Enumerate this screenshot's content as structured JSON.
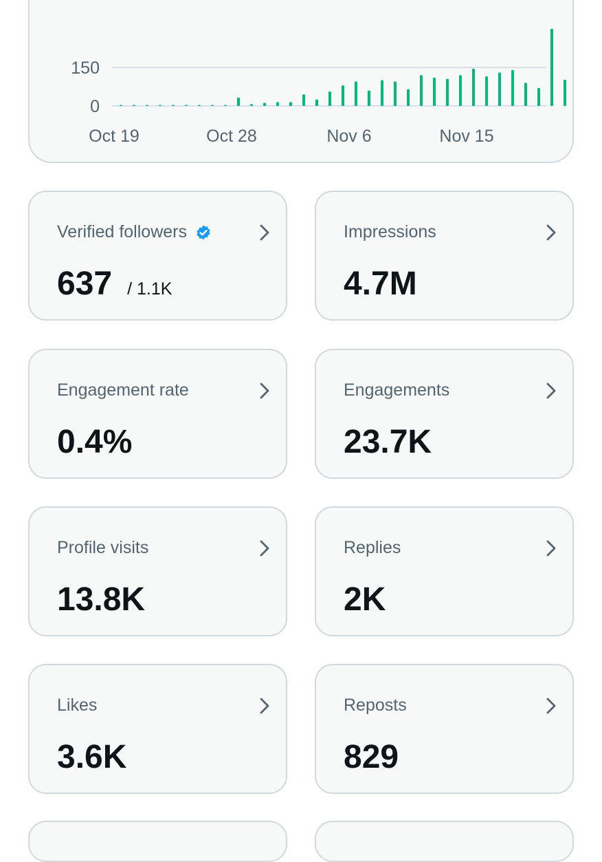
{
  "chart_data": {
    "type": "bar",
    "color": "#00ba7c",
    "y_ticks": [
      "0",
      "150"
    ],
    "x_tick_labels": [
      "Oct 19",
      "Oct 28",
      "Nov 6",
      "Nov 15"
    ],
    "categories": [
      "Oct 19",
      "Oct 20",
      "Oct 21",
      "Oct 22",
      "Oct 23",
      "Oct 24",
      "Oct 25",
      "Oct 26",
      "Oct 27",
      "Oct 28",
      "Oct 29",
      "Oct 30",
      "Oct 31",
      "Nov 1",
      "Nov 2",
      "Nov 3",
      "Nov 4",
      "Nov 5",
      "Nov 6",
      "Nov 7",
      "Nov 8",
      "Nov 9",
      "Nov 10",
      "Nov 11",
      "Nov 12",
      "Nov 13",
      "Nov 14",
      "Nov 15",
      "Nov 16",
      "Nov 17",
      "Nov 18",
      "Nov 19",
      "Nov 20",
      "Nov 21",
      "Nov 22",
      "Nov 23"
    ],
    "values": [
      2,
      2,
      2,
      0,
      0,
      0,
      0,
      1,
      1,
      32,
      7,
      12,
      15,
      15,
      45,
      25,
      56,
      80,
      95,
      60,
      100,
      95,
      65,
      120,
      110,
      105,
      120,
      145,
      115,
      130,
      140,
      90,
      70,
      300,
      102,
      0
    ],
    "ylim": [
      0,
      310
    ]
  },
  "metrics": [
    {
      "label": "Verified followers",
      "value": "637",
      "sub": "/ 1.1K",
      "verified": true
    },
    {
      "label": "Impressions",
      "value": "4.7M"
    },
    {
      "label": "Engagement rate",
      "value": "0.4%"
    },
    {
      "label": "Engagements",
      "value": "23.7K"
    },
    {
      "label": "Profile visits",
      "value": "13.8K"
    },
    {
      "label": "Replies",
      "value": "2K"
    },
    {
      "label": "Likes",
      "value": "3.6K"
    },
    {
      "label": "Reposts",
      "value": "829"
    }
  ],
  "icons": {
    "chevron": "chevron-right-icon",
    "verified": "verified-badge-icon"
  },
  "colors": {
    "accent": "#00ba7c",
    "verified": "#1d9bf0",
    "card_bg": "#f7f9f9",
    "border": "#cfd9de"
  }
}
